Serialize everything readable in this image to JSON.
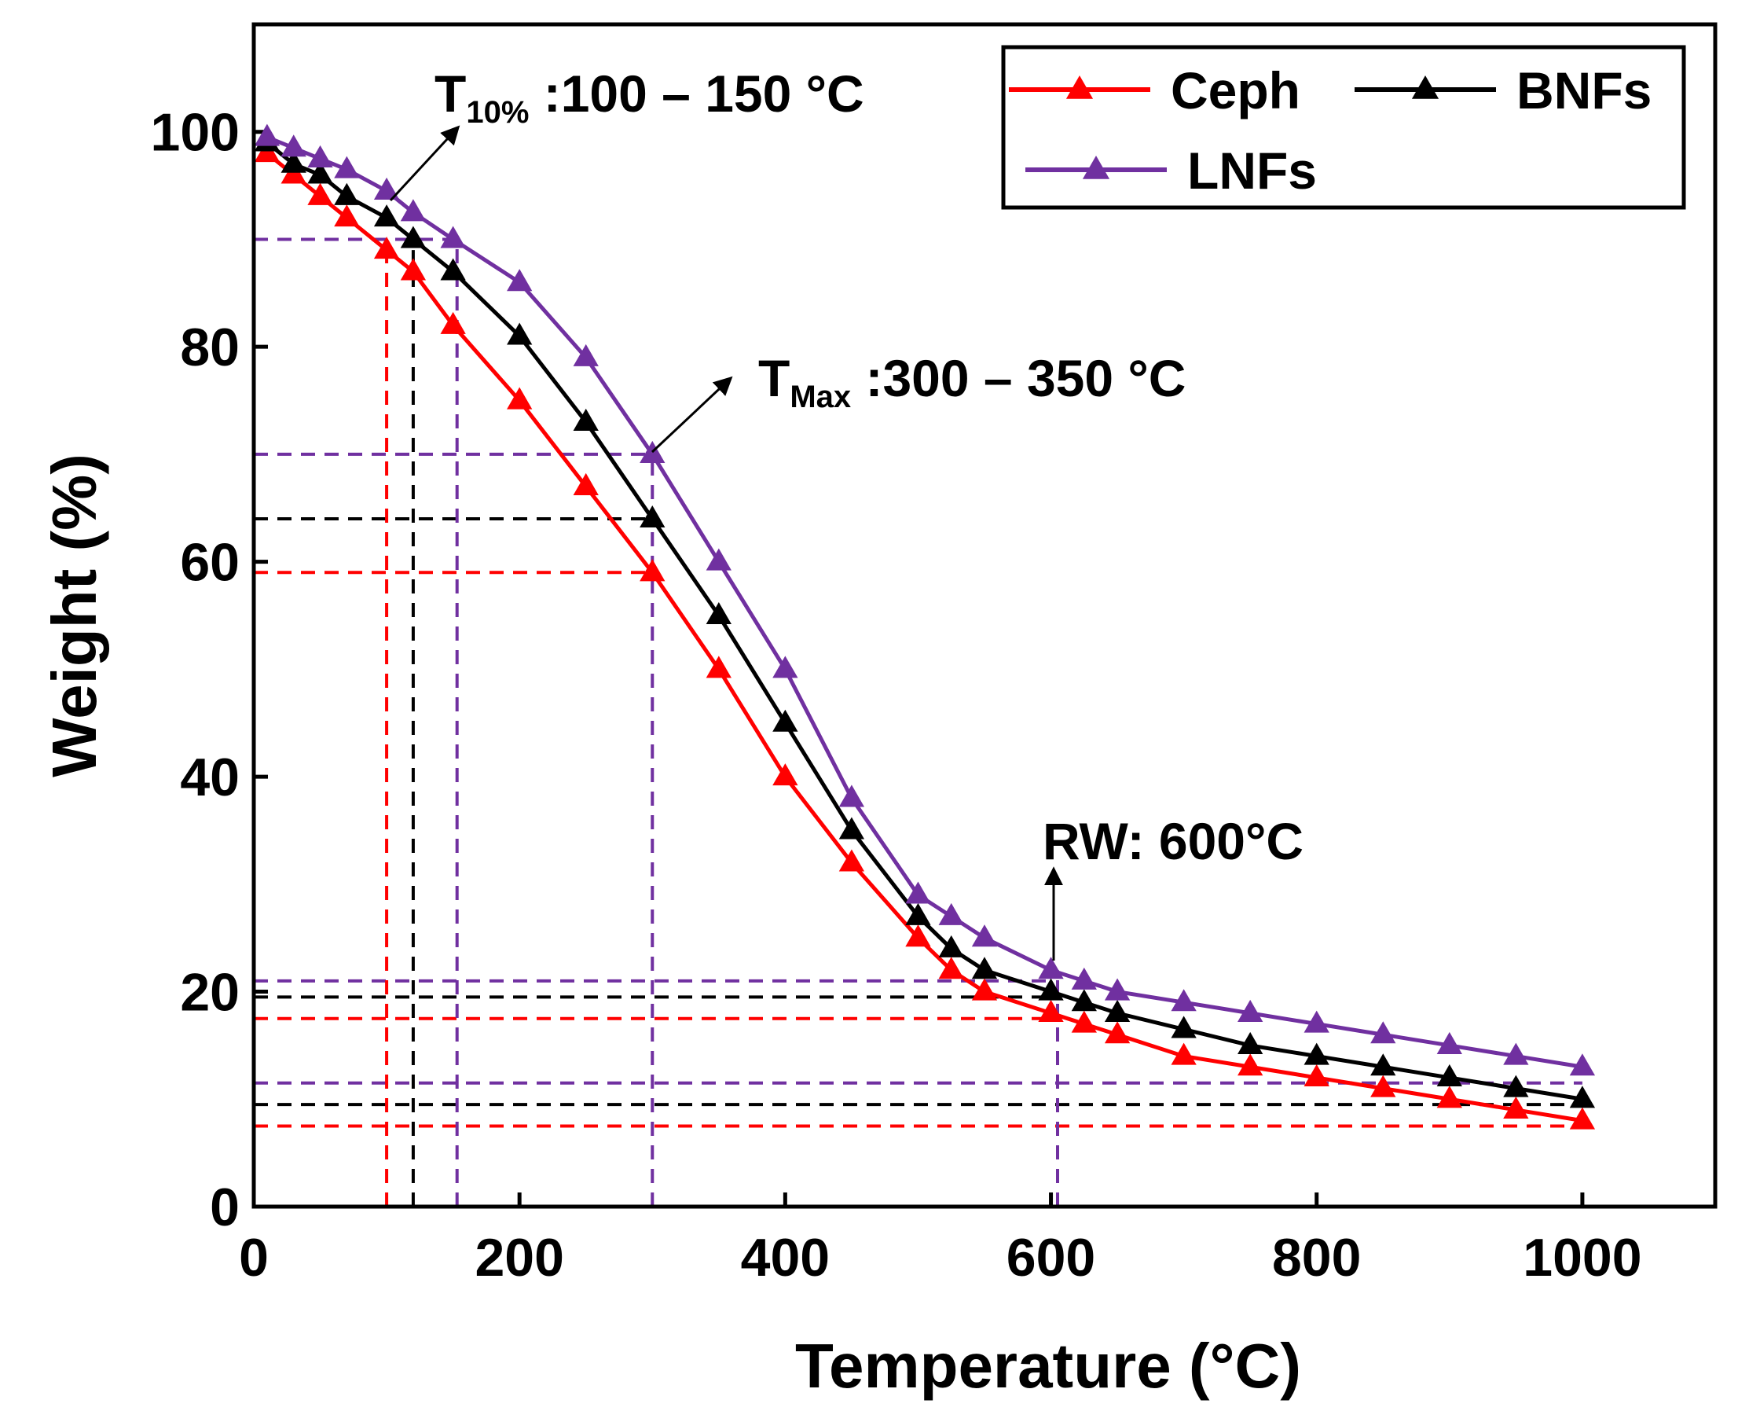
{
  "chart_data": {
    "type": "line",
    "xlabel": "Temperature (°C)",
    "ylabel": "Weight (%)",
    "xlim": [
      0,
      1100
    ],
    "ylim": [
      0,
      110
    ],
    "xticks": [
      0,
      200,
      400,
      600,
      800,
      1000
    ],
    "yticks": [
      0,
      20,
      40,
      60,
      80,
      100
    ],
    "x": [
      10,
      30,
      50,
      70,
      100,
      120,
      150,
      200,
      250,
      300,
      350,
      400,
      450,
      500,
      525,
      550,
      600,
      625,
      650,
      700,
      750,
      800,
      850,
      900,
      950,
      1000
    ],
    "series": [
      {
        "name": "Ceph",
        "color": "#ff0000",
        "values": [
          98,
          96,
          94,
          92,
          89,
          87,
          82,
          75,
          67,
          59,
          50,
          40,
          32,
          25,
          22,
          20,
          18,
          17,
          16,
          14,
          13,
          12,
          11,
          10,
          9,
          8
        ]
      },
      {
        "name": "BNFs",
        "color": "#000000",
        "values": [
          99,
          97,
          96,
          94,
          92,
          90,
          87,
          81,
          73,
          64,
          55,
          45,
          35,
          27,
          24,
          22,
          20,
          19,
          18,
          16.5,
          15,
          14,
          13,
          12,
          11,
          10
        ]
      },
      {
        "name": "LNFs",
        "color": "#7030a0",
        "values": [
          99.5,
          98.5,
          97.5,
          96.5,
          94.5,
          92.5,
          90,
          86,
          79,
          70,
          60,
          50,
          38,
          29,
          27,
          25,
          22,
          21,
          20,
          19,
          18,
          17,
          16,
          15,
          14,
          13
        ]
      }
    ],
    "hlines": [
      {
        "y": 90,
        "x": 150,
        "color": "#7030a0"
      },
      {
        "y": 70,
        "x": 300,
        "color": "#7030a0"
      },
      {
        "y": 64,
        "x": 300,
        "color": "#000000"
      },
      {
        "y": 59,
        "x": 300,
        "color": "#ff0000"
      },
      {
        "y": 21,
        "x": 600,
        "color": "#7030a0"
      },
      {
        "y": 19.5,
        "x": 600,
        "color": "#000000"
      },
      {
        "y": 17.5,
        "x": 600,
        "color": "#ff0000"
      },
      {
        "y": 11.5,
        "x": 1000,
        "color": "#7030a0"
      },
      {
        "y": 9.5,
        "x": 1000,
        "color": "#000000"
      },
      {
        "y": 7.5,
        "x": 1000,
        "color": "#ff0000"
      }
    ],
    "vlines": [
      {
        "x": 100,
        "y": 90,
        "color": "#ff0000"
      },
      {
        "x": 120,
        "y": 89,
        "color": "#000000"
      },
      {
        "x": 153,
        "y": 90,
        "color": "#7030a0"
      },
      {
        "x": 300,
        "y": 70,
        "color": "#7030a0"
      },
      {
        "x": 605,
        "y": 22,
        "color": "#7030a0"
      }
    ],
    "annotations": [
      {
        "text": "T",
        "sub": "10%",
        "rest": " :100 – 150 °C"
      },
      {
        "text": "T",
        "sub": "Max",
        "rest": " :300 – 350 °C"
      },
      {
        "text": "RW: 600°C"
      }
    ]
  }
}
